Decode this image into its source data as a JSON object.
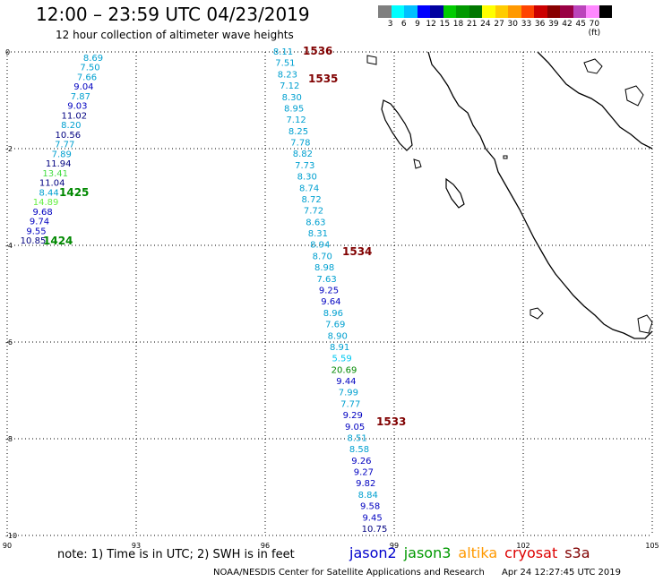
{
  "title": "12:00 – 23:59 UTC 04/23/2019",
  "subtitle": "12 hour collection of altimeter wave heights",
  "colorbar": {
    "colors": [
      "#7f7f7f",
      "#00ffff",
      "#00c0ff",
      "#0000ff",
      "#0000a0",
      "#00cc00",
      "#009900",
      "#007700",
      "#ffff00",
      "#ffcc00",
      "#ff9900",
      "#ff4400",
      "#cc0000",
      "#880000",
      "#990044",
      "#bb44bb",
      "#ff88ff",
      "#000000"
    ],
    "labels": [
      "3",
      "6",
      "9",
      "12",
      "15",
      "18",
      "21",
      "24",
      "27",
      "30",
      "33",
      "36",
      "39",
      "42",
      "45",
      "70 (ft)"
    ]
  },
  "axes": {
    "x_ticks": [
      "90",
      "93",
      "96",
      "99",
      "102",
      "105"
    ],
    "y_ticks": [
      "0",
      "-2",
      "-4",
      "-6",
      "-8",
      "-10"
    ]
  },
  "tracks": {
    "west": [
      {
        "v": "8.69",
        "c": "#00a0d0"
      },
      {
        "v": "7.50",
        "c": "#00a0d0"
      },
      {
        "v": "7.66",
        "c": "#00a0d0"
      },
      {
        "v": "9.04",
        "c": "#0000c0"
      },
      {
        "v": "7.87",
        "c": "#00a0d0"
      },
      {
        "v": "9.03",
        "c": "#0000c0"
      },
      {
        "v": "11.02",
        "c": "#000080"
      },
      {
        "v": "8.20",
        "c": "#00a0d0"
      },
      {
        "v": "10.56",
        "c": "#000080"
      },
      {
        "v": "7.77",
        "c": "#00a0d0"
      },
      {
        "v": "7.89",
        "c": "#00a0d0"
      },
      {
        "v": "11.94",
        "c": "#000080"
      },
      {
        "v": "13.41",
        "c": "#44dd44"
      },
      {
        "v": "11.04",
        "c": "#000080"
      },
      {
        "v": "8.44",
        "c": "#00a0d0"
      },
      {
        "v": "14.89",
        "c": "#66ee44"
      },
      {
        "v": "9.68",
        "c": "#0000c0"
      },
      {
        "v": "9.74",
        "c": "#0000c0"
      },
      {
        "v": "9.55",
        "c": "#0000c0"
      },
      {
        "v": "10.85",
        "c": "#000080"
      }
    ],
    "center": [
      {
        "v": "8.11",
        "c": "#00a0d0"
      },
      {
        "v": "7.51",
        "c": "#00a0d0"
      },
      {
        "v": "8.23",
        "c": "#00a0d0"
      },
      {
        "v": "7.12",
        "c": "#00a0d0"
      },
      {
        "v": "8.30",
        "c": "#00a0d0"
      },
      {
        "v": "8.95",
        "c": "#00a0d0"
      },
      {
        "v": "7.12",
        "c": "#00a0d0"
      },
      {
        "v": "8.25",
        "c": "#00a0d0"
      },
      {
        "v": "7.78",
        "c": "#00a0d0"
      },
      {
        "v": "8.82",
        "c": "#00a0d0"
      },
      {
        "v": "7.73",
        "c": "#00a0d0"
      },
      {
        "v": "8.30",
        "c": "#00a0d0"
      },
      {
        "v": "8.74",
        "c": "#00a0d0"
      },
      {
        "v": "8.72",
        "c": "#00a0d0"
      },
      {
        "v": "7.72",
        "c": "#00a0d0"
      },
      {
        "v": "8.63",
        "c": "#00a0d0"
      },
      {
        "v": "8.31",
        "c": "#00a0d0"
      },
      {
        "v": "8.94",
        "c": "#00a0d0"
      },
      {
        "v": "8.70",
        "c": "#00a0d0"
      },
      {
        "v": "8.98",
        "c": "#00a0d0"
      },
      {
        "v": "7.63",
        "c": "#00a0d0"
      },
      {
        "v": "9.25",
        "c": "#0000c0"
      },
      {
        "v": "9.64",
        "c": "#0000c0"
      },
      {
        "v": "8.96",
        "c": "#00a0d0"
      },
      {
        "v": "7.69",
        "c": "#00a0d0"
      },
      {
        "v": "8.90",
        "c": "#00a0d0"
      },
      {
        "v": "8.91",
        "c": "#00a0d0"
      },
      {
        "v": "5.59",
        "c": "#00c8f0"
      },
      {
        "v": "20.69",
        "c": "#008800"
      },
      {
        "v": "9.44",
        "c": "#0000c0"
      },
      {
        "v": "7.99",
        "c": "#00a0d0"
      },
      {
        "v": "7.77",
        "c": "#00a0d0"
      },
      {
        "v": "9.29",
        "c": "#0000c0"
      },
      {
        "v": "9.05",
        "c": "#0000c0"
      },
      {
        "v": "8.51",
        "c": "#00a0d0"
      },
      {
        "v": "8.58",
        "c": "#00a0d0"
      },
      {
        "v": "9.26",
        "c": "#0000c0"
      },
      {
        "v": "9.27",
        "c": "#0000c0"
      },
      {
        "v": "9.82",
        "c": "#0000c0"
      },
      {
        "v": "8.84",
        "c": "#00a0d0"
      },
      {
        "v": "9.58",
        "c": "#0000c0"
      },
      {
        "v": "9.45",
        "c": "#0000c0"
      },
      {
        "v": "10.75",
        "c": "#000080"
      }
    ]
  },
  "time_labels": [
    {
      "t": "1536",
      "c": "#800000"
    },
    {
      "t": "1535",
      "c": "#800000"
    },
    {
      "t": "1534",
      "c": "#800000"
    },
    {
      "t": "1533",
      "c": "#800000"
    },
    {
      "t": "1425",
      "c": "#008800"
    },
    {
      "t": "1424",
      "c": "#008800"
    }
  ],
  "note": "note:  1) Time is in UTC;  2) SWH is in feet",
  "satellites": [
    {
      "name": "jason2",
      "color": "#0000cc"
    },
    {
      "name": "jason3",
      "color": "#009900"
    },
    {
      "name": "altika",
      "color": "#ff9900"
    },
    {
      "name": "cryosat",
      "color": "#dd0000"
    },
    {
      "name": "s3a",
      "color": "#800000"
    }
  ],
  "footer": {
    "credit": "NOAA/NESDIS Center for Satellite Applications and Research",
    "timestamp": "Apr 24 12:27:45 UTC 2019"
  }
}
